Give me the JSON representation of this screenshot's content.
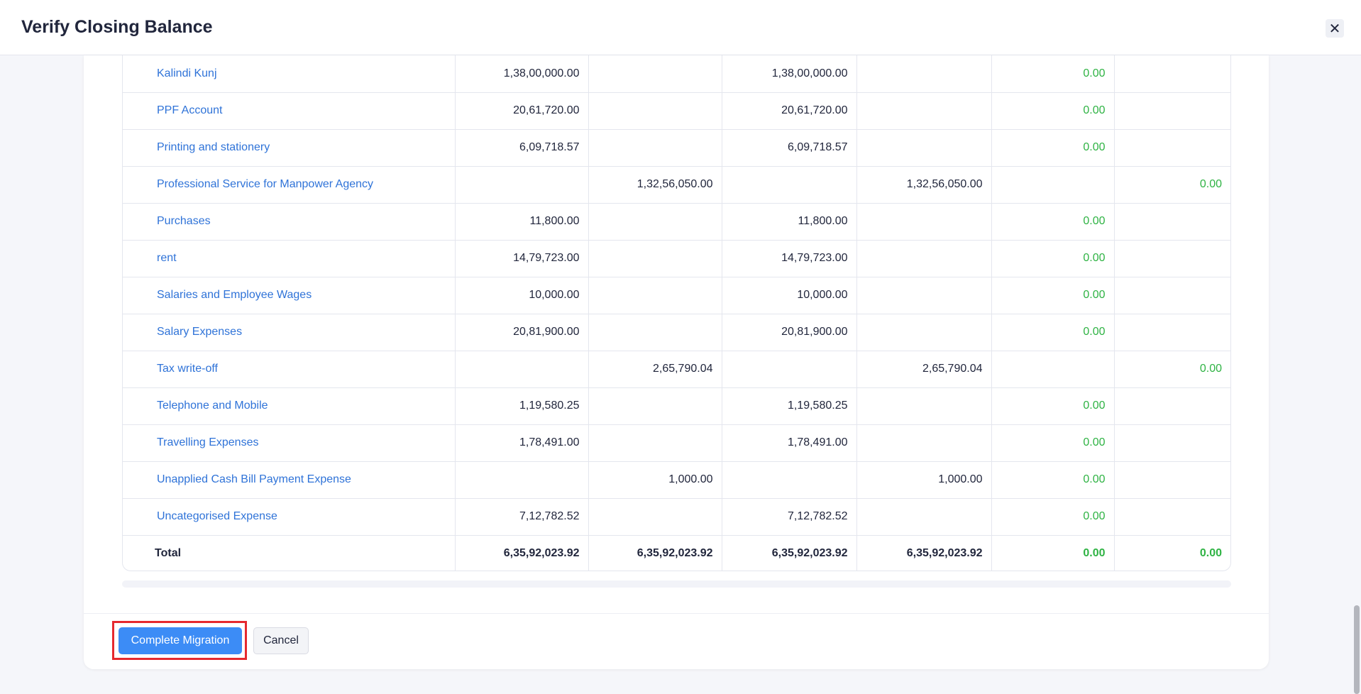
{
  "header": {
    "title": "Verify Closing Balance",
    "close_icon": "close-icon"
  },
  "table": {
    "rows": [
      {
        "name": "Kalindi Kunj",
        "c1": "1,38,00,000.00",
        "c2": "",
        "c3": "1,38,00,000.00",
        "c4": "",
        "c5": "0.00",
        "c6": ""
      },
      {
        "name": "PPF Account",
        "c1": "20,61,720.00",
        "c2": "",
        "c3": "20,61,720.00",
        "c4": "",
        "c5": "0.00",
        "c6": ""
      },
      {
        "name": "Printing and stationery",
        "c1": "6,09,718.57",
        "c2": "",
        "c3": "6,09,718.57",
        "c4": "",
        "c5": "0.00",
        "c6": ""
      },
      {
        "name": "Professional Service for Manpower Agency",
        "c1": "",
        "c2": "1,32,56,050.00",
        "c3": "",
        "c4": "1,32,56,050.00",
        "c5": "",
        "c6": "0.00"
      },
      {
        "name": "Purchases",
        "c1": "11,800.00",
        "c2": "",
        "c3": "11,800.00",
        "c4": "",
        "c5": "0.00",
        "c6": ""
      },
      {
        "name": "rent",
        "c1": "14,79,723.00",
        "c2": "",
        "c3": "14,79,723.00",
        "c4": "",
        "c5": "0.00",
        "c6": ""
      },
      {
        "name": "Salaries and Employee Wages",
        "c1": "10,000.00",
        "c2": "",
        "c3": "10,000.00",
        "c4": "",
        "c5": "0.00",
        "c6": ""
      },
      {
        "name": "Salary Expenses",
        "c1": "20,81,900.00",
        "c2": "",
        "c3": "20,81,900.00",
        "c4": "",
        "c5": "0.00",
        "c6": ""
      },
      {
        "name": "Tax write-off",
        "c1": "",
        "c2": "2,65,790.04",
        "c3": "",
        "c4": "2,65,790.04",
        "c5": "",
        "c6": "0.00"
      },
      {
        "name": "Telephone and Mobile",
        "c1": "1,19,580.25",
        "c2": "",
        "c3": "1,19,580.25",
        "c4": "",
        "c5": "0.00",
        "c6": ""
      },
      {
        "name": "Travelling Expenses",
        "c1": "1,78,491.00",
        "c2": "",
        "c3": "1,78,491.00",
        "c4": "",
        "c5": "0.00",
        "c6": ""
      },
      {
        "name": "Unapplied Cash Bill Payment Expense",
        "c1": "",
        "c2": "1,000.00",
        "c3": "",
        "c4": "1,000.00",
        "c5": "0.00",
        "c6": ""
      },
      {
        "name": "Uncategorised Expense",
        "c1": "7,12,782.52",
        "c2": "",
        "c3": "7,12,782.52",
        "c4": "",
        "c5": "0.00",
        "c6": ""
      }
    ],
    "total": {
      "name": "Total",
      "c1": "6,35,92,023.92",
      "c2": "6,35,92,023.92",
      "c3": "6,35,92,023.92",
      "c4": "6,35,92,023.92",
      "c5": "0.00",
      "c6": "0.00"
    }
  },
  "footer": {
    "complete_label": "Complete Migration",
    "cancel_label": "Cancel"
  },
  "colors": {
    "link": "#2f73d8",
    "positive": "#2fb344",
    "primary": "#3c8cf6",
    "highlight": "#e5292f"
  }
}
